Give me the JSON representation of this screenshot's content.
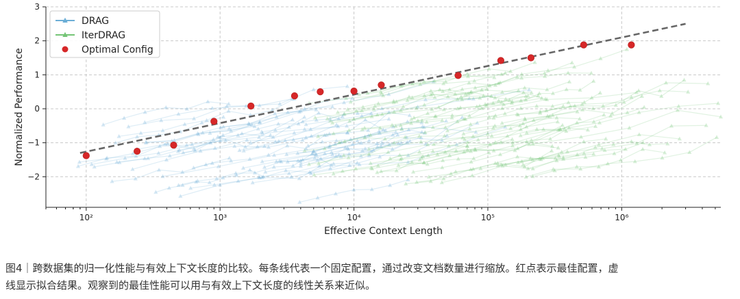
{
  "chart_data": {
    "type": "scatter",
    "title": "",
    "xlabel": "Effective Context Length",
    "ylabel": "Normalized Performance",
    "x_scale": "log",
    "xlim": [
      50,
      5500000
    ],
    "ylim": [
      -2.9,
      3
    ],
    "x_ticks": [
      {
        "value": 100,
        "label": "10²"
      },
      {
        "value": 1000,
        "label": "10³"
      },
      {
        "value": 10000,
        "label": "10⁴"
      },
      {
        "value": 100000,
        "label": "10⁵"
      },
      {
        "value": 1000000,
        "label": "10⁶"
      }
    ],
    "y_ticks": [
      -2,
      -1,
      0,
      1,
      2,
      3
    ],
    "y_tick_labels": [
      "−2",
      "−1",
      "0",
      "1",
      "2",
      "3"
    ],
    "grid": true,
    "legend_position": "top-left",
    "legend": [
      {
        "label": "DRAG",
        "color": "#6baed6",
        "marker": "triangle"
      },
      {
        "label": "IterDRAG",
        "color": "#74c476",
        "marker": "triangle"
      },
      {
        "label": "Optimal Config",
        "color": "#d62728",
        "marker": "circle"
      }
    ],
    "series": [
      {
        "name": "Optimal Config",
        "points": [
          {
            "x": 100,
            "y": -1.38
          },
          {
            "x": 240,
            "y": -1.25
          },
          {
            "x": 450,
            "y": -1.07
          },
          {
            "x": 900,
            "y": -0.37
          },
          {
            "x": 1700,
            "y": 0.08
          },
          {
            "x": 3600,
            "y": 0.38
          },
          {
            "x": 5600,
            "y": 0.5
          },
          {
            "x": 10000,
            "y": 0.52
          },
          {
            "x": 16000,
            "y": 0.7
          },
          {
            "x": 60000,
            "y": 0.98
          },
          {
            "x": 125000,
            "y": 1.42
          },
          {
            "x": 210000,
            "y": 1.5
          },
          {
            "x": 520000,
            "y": 1.88
          },
          {
            "x": 1180000,
            "y": 1.88
          }
        ]
      },
      {
        "name": "Fit",
        "style": "dashed",
        "color": "#666666",
        "points": [
          {
            "x": 90,
            "y": -1.3
          },
          {
            "x": 3000000,
            "y": 2.5
          }
        ]
      }
    ],
    "note": "The original also shows many faint DRAG (blue) and IterDRAG (green) configuration curves; they are drawn below as decorative background traces."
  },
  "caption": {
    "line1": "图4｜跨数据集的归一化性能与有效上下文长度的比较。每条线代表一个固定配置，通过改变文档数量进行缩放。红点表示最佳配置，虚",
    "line2": "线显示拟合结果。观察到的最佳性能可以用与有效上下文长度的线性关系来近似。"
  }
}
